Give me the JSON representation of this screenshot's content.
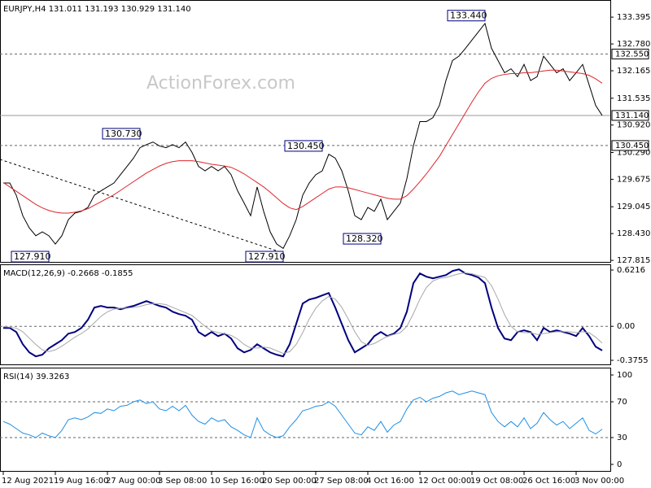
{
  "chart_data": [
    {
      "type": "line",
      "title": "EURJPY,H4 131.011 131.193 130.929 131.140",
      "watermark": "ActionForex.com",
      "xlim": [
        -0.5,
        93.25
      ],
      "xticks": [
        {
          "value": 0,
          "label": "12 Aug 2021"
        },
        {
          "value": 8,
          "label": "19 Aug 16:00"
        },
        {
          "value": 16,
          "label": "27 Aug 00:00"
        },
        {
          "value": 24,
          "label": "3 Sep 08:00"
        },
        {
          "value": 32,
          "label": "10 Sep 16:00"
        },
        {
          "value": 40,
          "label": "20 Sep 00:00"
        },
        {
          "value": 48,
          "label": "27 Sep 08:00"
        },
        {
          "value": 56,
          "label": "4 Oct 16:00"
        },
        {
          "value": 64,
          "label": "12 Oct 00:00"
        },
        {
          "value": 72,
          "label": "19 Oct 08:00"
        },
        {
          "value": 80,
          "label": "26 Oct 16:00"
        },
        {
          "value": 88,
          "label": "3 Nov 00:00"
        }
      ],
      "ylim": [
        127.78,
        133.77
      ],
      "yticks": [
        133.395,
        {
          "value": 132.78,
          "label": "132.780"
        },
        132.165,
        131.535,
        {
          "value": 130.92,
          "label": "130.920"
        },
        {
          "value": 130.29,
          "label": "130.290"
        },
        129.675,
        129.045,
        {
          "value": 128.43,
          "label": "128.430"
        },
        127.815
      ],
      "levels": [
        {
          "value": 132.55,
          "label": "132.550",
          "style": "dashed"
        },
        {
          "value": 130.45,
          "label": "130.450",
          "style": "dashed"
        },
        {
          "value": 131.14,
          "label": "131.140",
          "style": "solid"
        }
      ],
      "annotations": [
        {
          "x": 7,
          "value": 127.91,
          "label": "127.910"
        },
        {
          "x": 21,
          "value": 130.73,
          "label": "130.730"
        },
        {
          "x": 43,
          "value": 127.91,
          "label": "127.910"
        },
        {
          "x": 49,
          "value": 130.45,
          "label": "130.450"
        },
        {
          "x": 58,
          "value": 128.32,
          "label": "128.320"
        },
        {
          "x": 74,
          "value": 133.44,
          "label": "133.440"
        }
      ],
      "series": [
        {
          "name": "EURJPY",
          "color": "#000000",
          "values": [
            129.59,
            129.59,
            129.31,
            128.84,
            128.56,
            128.38,
            128.47,
            128.38,
            128.19,
            128.38,
            128.75,
            128.9,
            128.94,
            129.03,
            129.31,
            129.41,
            129.5,
            129.59,
            129.78,
            129.97,
            130.16,
            130.4,
            130.47,
            130.53,
            130.44,
            130.4,
            130.47,
            130.4,
            130.53,
            130.29,
            129.97,
            129.87,
            129.97,
            129.87,
            129.97,
            129.78,
            129.41,
            129.13,
            128.84,
            129.5,
            128.94,
            128.47,
            128.19,
            128.09,
            128.38,
            128.75,
            129.31,
            129.59,
            129.78,
            129.87,
            130.25,
            130.16,
            129.87,
            129.41,
            128.84,
            128.75,
            129.03,
            128.94,
            129.22,
            128.75,
            128.94,
            129.13,
            129.69,
            130.44,
            131.0,
            131.0,
            131.09,
            131.37,
            131.94,
            132.4,
            132.5,
            132.68,
            132.87,
            133.06,
            133.25,
            132.68,
            132.4,
            132.12,
            132.21,
            132.03,
            132.31,
            131.94,
            132.03,
            132.5,
            132.31,
            132.12,
            132.21,
            131.94,
            132.12,
            132.31,
            131.84,
            131.37,
            131.14
          ]
        },
        {
          "name": "MA",
          "color": "#e0252b",
          "values": [
            129.6,
            129.5,
            129.4,
            129.3,
            129.2,
            129.1,
            129.02,
            128.96,
            128.92,
            128.9,
            128.9,
            128.92,
            128.95,
            129.0,
            129.08,
            129.16,
            129.24,
            129.32,
            129.42,
            129.52,
            129.62,
            129.72,
            129.82,
            129.9,
            129.98,
            130.04,
            130.08,
            130.1,
            130.1,
            130.1,
            130.08,
            130.05,
            130.02,
            130.0,
            129.98,
            129.95,
            129.88,
            129.8,
            129.7,
            129.6,
            129.5,
            129.38,
            129.25,
            129.12,
            129.02,
            128.98,
            129.05,
            129.15,
            129.25,
            129.35,
            129.45,
            129.5,
            129.5,
            129.48,
            129.44,
            129.4,
            129.36,
            129.32,
            129.28,
            129.24,
            129.22,
            129.22,
            129.3,
            129.45,
            129.62,
            129.8,
            130.0,
            130.2,
            130.45,
            130.7,
            130.95,
            131.2,
            131.45,
            131.68,
            131.88,
            131.99,
            132.05,
            132.08,
            132.1,
            132.1,
            132.12,
            132.12,
            132.14,
            132.16,
            132.18,
            132.18,
            132.16,
            132.14,
            132.12,
            132.1,
            132.06,
            131.98,
            131.88
          ]
        }
      ]
    },
    {
      "type": "line",
      "title": "MACD(12,26,9) -0.2668 -0.1855",
      "ylim": [
        -0.4204,
        0.6755
      ],
      "yticks": [
        0.6216,
        {
          "value": 0,
          "label": "0.00"
        },
        -0.3755
      ],
      "levels": [
        {
          "value": 0,
          "style": "dashed"
        }
      ],
      "series": [
        {
          "name": "MACD",
          "color": "#000080",
          "values": [
            -0.018,
            -0.018,
            -0.063,
            -0.198,
            -0.288,
            -0.332,
            -0.314,
            -0.243,
            -0.198,
            -0.153,
            -0.081,
            -0.063,
            -0.018,
            0.072,
            0.207,
            0.225,
            0.207,
            0.207,
            0.189,
            0.207,
            0.225,
            0.252,
            0.279,
            0.252,
            0.225,
            0.207,
            0.162,
            0.135,
            0.117,
            0.072,
            -0.063,
            -0.108,
            -0.063,
            -0.108,
            -0.081,
            -0.135,
            -0.243,
            -0.288,
            -0.261,
            -0.198,
            -0.243,
            -0.288,
            -0.314,
            -0.332,
            -0.198,
            0.027,
            0.252,
            0.296,
            0.314,
            0.341,
            0.368,
            0.207,
            0.027,
            -0.153,
            -0.288,
            -0.243,
            -0.198,
            -0.108,
            -0.063,
            -0.108,
            -0.081,
            -0.018,
            0.162,
            0.476,
            0.584,
            0.548,
            0.53,
            0.548,
            0.566,
            0.611,
            0.629,
            0.584,
            0.566,
            0.539,
            0.476,
            0.207,
            -0.018,
            -0.135,
            -0.153,
            -0.063,
            -0.045,
            -0.063,
            -0.153,
            -0.018,
            -0.063,
            -0.045,
            -0.063,
            -0.081,
            -0.108,
            -0.018,
            -0.108,
            -0.225,
            -0.2668
          ]
        },
        {
          "name": "Signal",
          "color": "#a8a8a8",
          "values": [
            0.0,
            -0.01,
            -0.02,
            -0.06,
            -0.13,
            -0.2,
            -0.26,
            -0.28,
            -0.26,
            -0.22,
            -0.17,
            -0.12,
            -0.08,
            -0.03,
            0.04,
            0.11,
            0.16,
            0.19,
            0.2,
            0.2,
            0.21,
            0.22,
            0.24,
            0.25,
            0.25,
            0.24,
            0.21,
            0.18,
            0.15,
            0.12,
            0.06,
            0.0,
            -0.05,
            -0.07,
            -0.08,
            -0.1,
            -0.14,
            -0.2,
            -0.24,
            -0.24,
            -0.23,
            -0.24,
            -0.27,
            -0.3,
            -0.28,
            -0.2,
            -0.07,
            0.08,
            0.2,
            0.28,
            0.33,
            0.3,
            0.21,
            0.08,
            -0.06,
            -0.17,
            -0.21,
            -0.19,
            -0.15,
            -0.11,
            -0.09,
            -0.07,
            0.0,
            0.14,
            0.3,
            0.43,
            0.5,
            0.53,
            0.54,
            0.56,
            0.58,
            0.59,
            0.58,
            0.56,
            0.54,
            0.45,
            0.3,
            0.13,
            0.0,
            -0.06,
            -0.07,
            -0.07,
            -0.09,
            -0.08,
            -0.07,
            -0.06,
            -0.06,
            -0.06,
            -0.07,
            -0.06,
            -0.07,
            -0.12,
            -0.1855
          ]
        }
      ]
    },
    {
      "type": "line",
      "title": "RSI(14) 39.3263",
      "ylim": [
        -7.3,
        107.3
      ],
      "yticks": [
        100,
        70,
        30,
        0
      ],
      "levels": [
        {
          "value": 70,
          "style": "dashed"
        },
        {
          "value": 30,
          "style": "dashed"
        }
      ],
      "series": [
        {
          "name": "RSI",
          "color": "#1e8fe6",
          "values": [
            48,
            45,
            40,
            35,
            33,
            30,
            35,
            32,
            30,
            38,
            50,
            52,
            50,
            53,
            58,
            57,
            62,
            60,
            65,
            66,
            70,
            72,
            68,
            70,
            62,
            60,
            65,
            60,
            66,
            55,
            48,
            45,
            52,
            48,
            50,
            42,
            38,
            33,
            30,
            52,
            38,
            33,
            30,
            32,
            42,
            50,
            60,
            62,
            65,
            66,
            70,
            65,
            55,
            45,
            35,
            33,
            42,
            38,
            48,
            36,
            44,
            48,
            62,
            72,
            75,
            70,
            74,
            76,
            80,
            82,
            78,
            80,
            82,
            80,
            78,
            58,
            48,
            42,
            48,
            42,
            52,
            40,
            46,
            58,
            50,
            44,
            48,
            40,
            46,
            52,
            38,
            34,
            39.33
          ]
        }
      ]
    }
  ]
}
